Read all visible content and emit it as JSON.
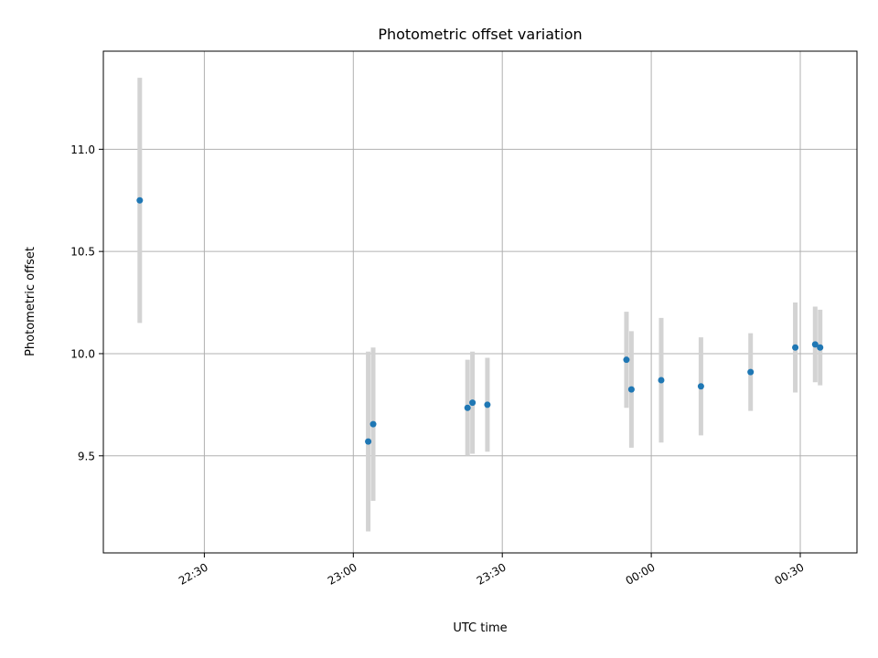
{
  "chart_data": {
    "type": "scatter",
    "title": "Photometric offset variation",
    "xlabel": "UTC time",
    "ylabel": "Photometric offset",
    "xlim": [
      "22:09:40",
      "00:41:25"
    ],
    "ylim": [
      9.025,
      11.48
    ],
    "x_ticks": [
      "22:30",
      "23:00",
      "23:30",
      "00:00",
      "00:30"
    ],
    "y_ticks": [
      "9.5",
      "10.0",
      "10.5",
      "11.0"
    ],
    "grid": true,
    "points": [
      {
        "t": "22:17",
        "y": 10.75,
        "err": 0.6
      },
      {
        "t": "23:03",
        "y": 9.57,
        "err": 0.44
      },
      {
        "t": "23:04",
        "y": 9.655,
        "err": 0.375
      },
      {
        "t": "23:23",
        "y": 9.735,
        "err": 0.235
      },
      {
        "t": "23:24",
        "y": 9.76,
        "err": 0.25
      },
      {
        "t": "23:27",
        "y": 9.75,
        "err": 0.23
      },
      {
        "t": "23:55",
        "y": 9.97,
        "err": 0.235
      },
      {
        "t": "23:56",
        "y": 9.825,
        "err": 0.285
      },
      {
        "t": "00:02",
        "y": 9.87,
        "err": 0.305
      },
      {
        "t": "00:10",
        "y": 9.84,
        "err": 0.24
      },
      {
        "t": "00:20",
        "y": 9.91,
        "err": 0.19
      },
      {
        "t": "00:29",
        "y": 10.03,
        "err": 0.22
      },
      {
        "t": "00:33",
        "y": 10.045,
        "err": 0.185
      },
      {
        "t": "00:34",
        "y": 10.03,
        "err": 0.185
      }
    ]
  }
}
